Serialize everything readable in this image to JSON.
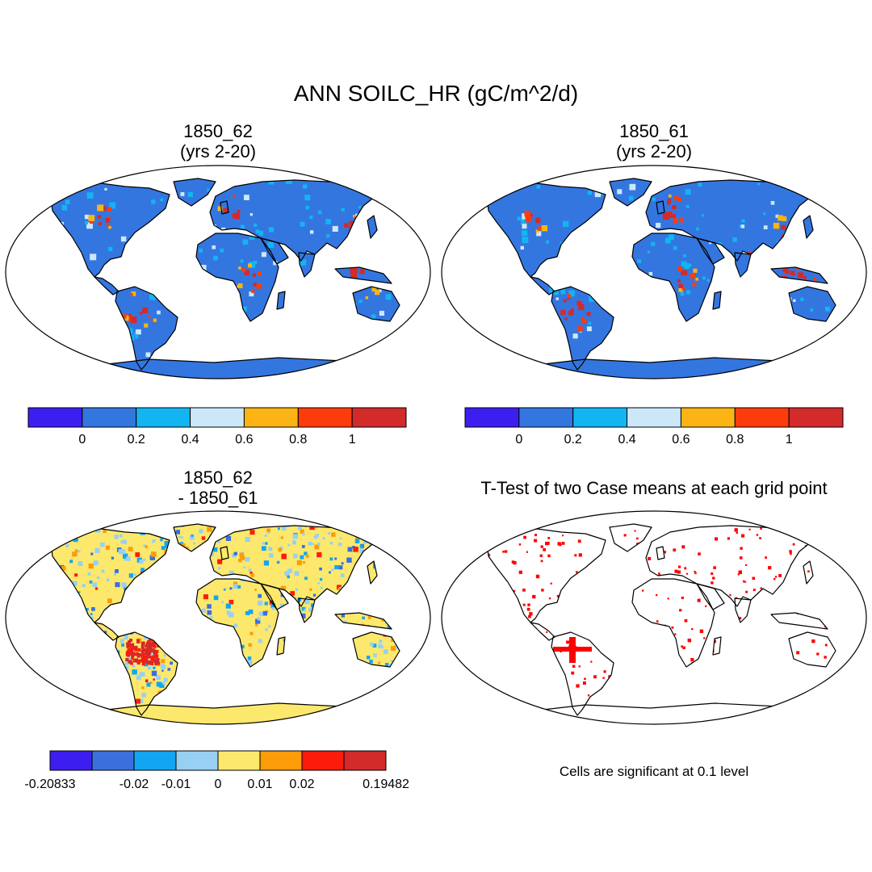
{
  "title": "ANN SOILC_HR (gC/m^2/d)",
  "panels": [
    {
      "id": "case1",
      "line1": "1850_62",
      "line2": "(yrs 2-20)"
    },
    {
      "id": "case2",
      "line1": "1850_61",
      "line2": "(yrs 2-20)"
    },
    {
      "id": "diff",
      "line1": "1850_62",
      "line2": "- 1850_61"
    },
    {
      "id": "ttest",
      "line1": "T-Test of two Case means at each grid point",
      "line2": ""
    }
  ],
  "colorbars": {
    "mean": {
      "colors": [
        "#3c1ff0",
        "#3476e0",
        "#12b5f2",
        "#cce8f8",
        "#fcb414",
        "#fd3c0c",
        "#d32a2a"
      ],
      "labels": [
        "0",
        "0.2",
        "0.4",
        "0.6",
        "0.8",
        "1"
      ]
    },
    "diff": {
      "colors": [
        "#3c1ff0",
        "#3a6fdd",
        "#12a6f2",
        "#97d0f2",
        "#fce86c",
        "#fc9c08",
        "#fc1c0c",
        "#d32a2a"
      ],
      "labels": [
        "-0.20833",
        "",
        "-0.02",
        "-0.01",
        "0",
        "0.01",
        "0.02",
        "",
        "0.19482"
      ]
    }
  },
  "significance_note": "Cells are significant at 0.1 level",
  "significance_color": "#ff0000"
}
